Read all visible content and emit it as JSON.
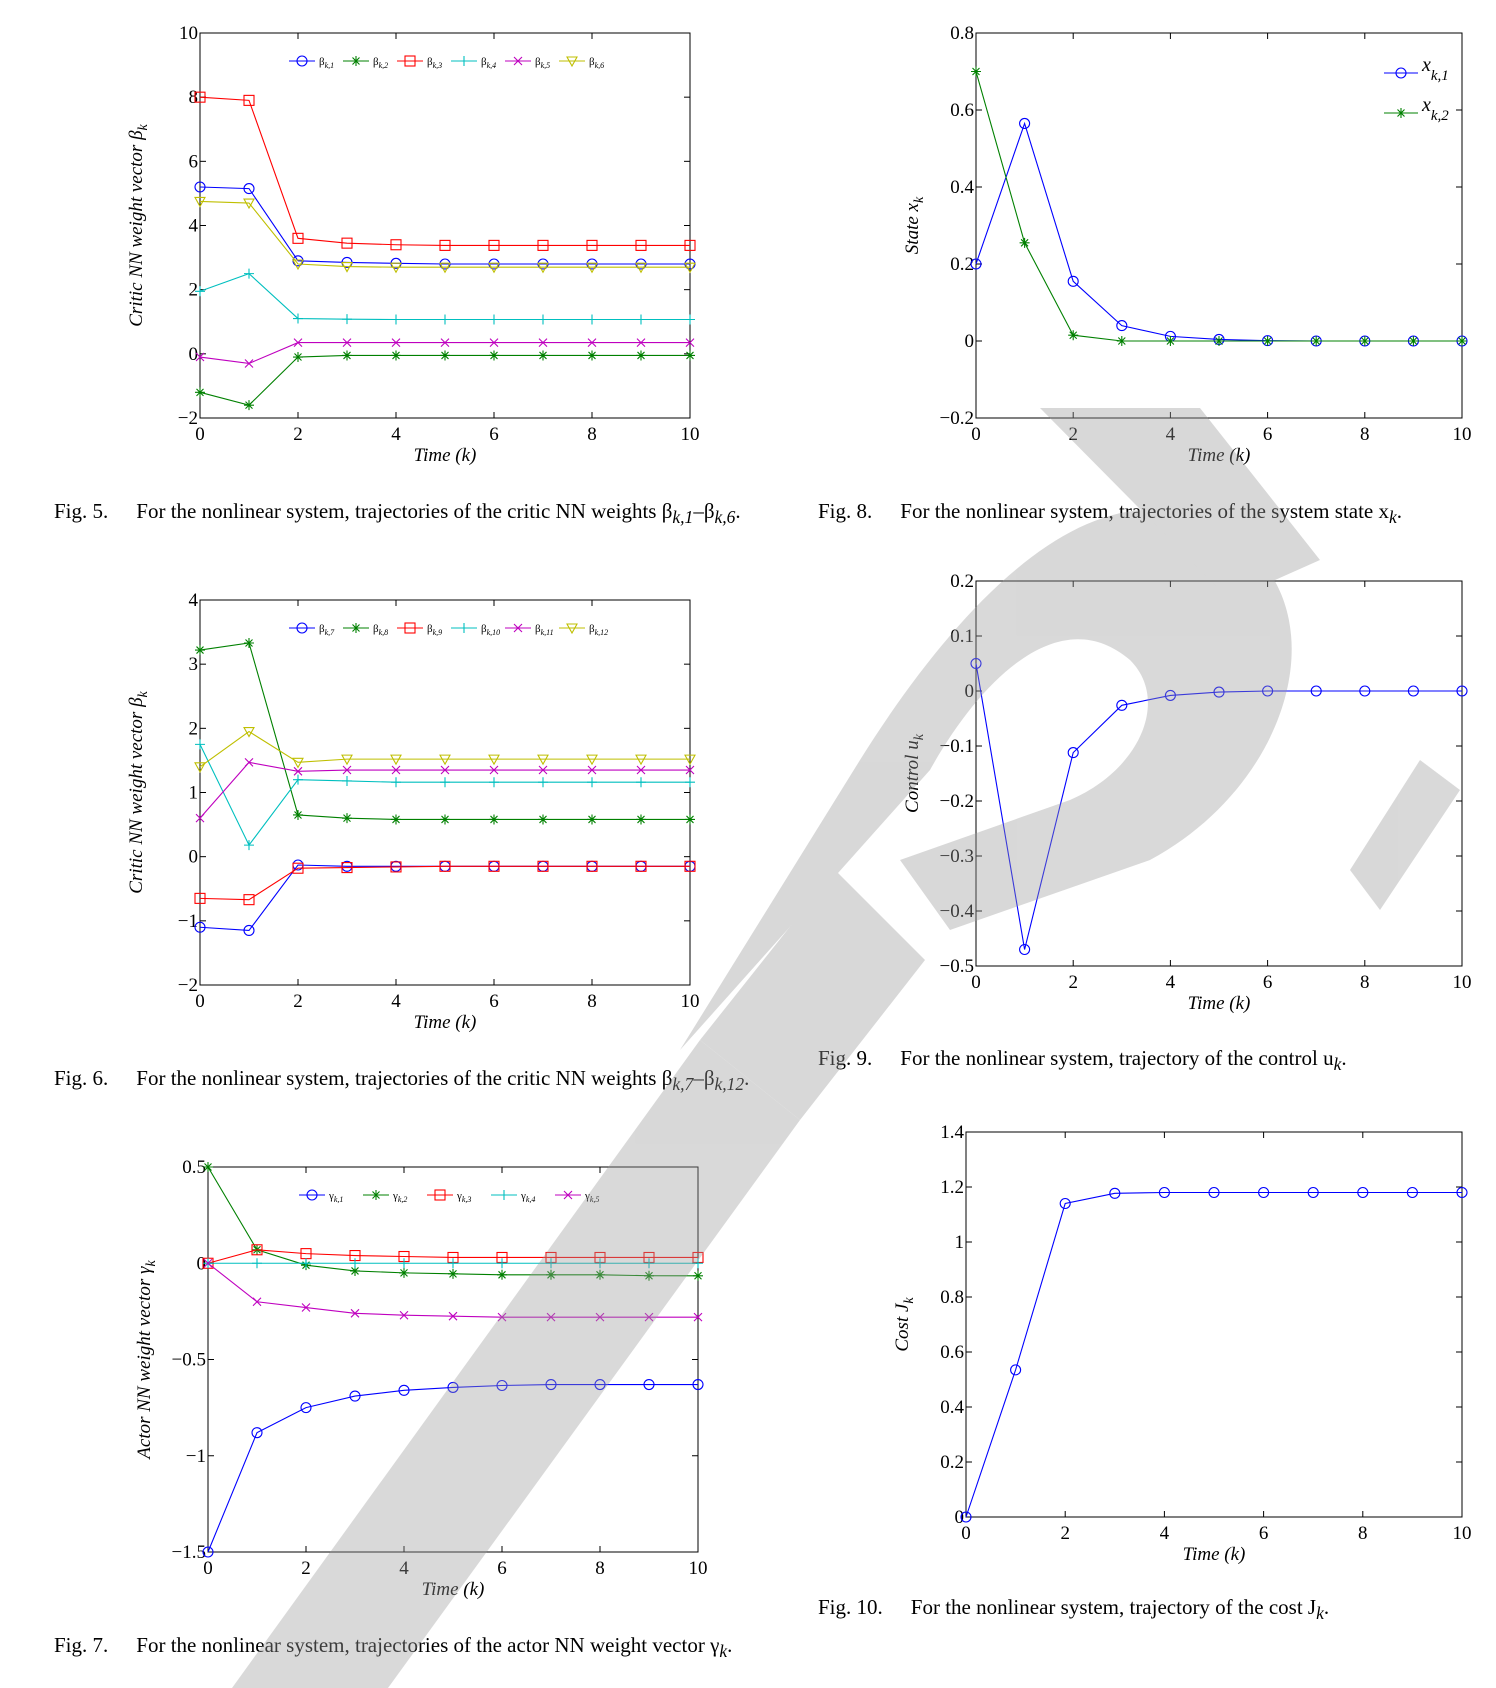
{
  "figures": [
    {
      "id": "fig5",
      "caption_label": "Fig. 5.",
      "caption_text": "For the nonlinear system, trajectories of the critic NN weights β",
      "caption_tail": "k,1",
      "caption_mid": "–β",
      "caption_tail2": "k,6",
      "caption_end": ".",
      "chart_data": {
        "type": "line",
        "ylabel": "Critic NN weight vector β",
        "ylabel_sub": "k",
        "xlabel": "Time (k)",
        "xlim": [
          0,
          10
        ],
        "ylim": [
          -2,
          10
        ],
        "xticks": [
          "0",
          "2",
          "4",
          "6",
          "8",
          "10"
        ],
        "yticks": [
          "−2",
          "0",
          "2",
          "4",
          "6",
          "8",
          "10"
        ],
        "legend_position": "top",
        "x": [
          0,
          1,
          2,
          3,
          4,
          5,
          6,
          7,
          8,
          9,
          10
        ],
        "series": [
          {
            "name": "β",
            "sub": "k,1",
            "color": "#0000ff",
            "marker": "circle",
            "values": [
              5.2,
              5.15,
              2.9,
              2.85,
              2.82,
              2.8,
              2.8,
              2.8,
              2.8,
              2.8,
              2.8
            ]
          },
          {
            "name": "β",
            "sub": "k,2",
            "color": "#008000",
            "marker": "star",
            "values": [
              -1.2,
              -1.6,
              -0.1,
              -0.05,
              -0.05,
              -0.05,
              -0.05,
              -0.05,
              -0.05,
              -0.05,
              -0.05
            ]
          },
          {
            "name": "β",
            "sub": "k,3",
            "color": "#ff0000",
            "marker": "square",
            "values": [
              8.0,
              7.9,
              3.6,
              3.45,
              3.4,
              3.38,
              3.38,
              3.38,
              3.38,
              3.38,
              3.38
            ]
          },
          {
            "name": "β",
            "sub": "k,4",
            "color": "#00bfbf",
            "marker": "plus",
            "values": [
              1.95,
              2.5,
              1.1,
              1.08,
              1.07,
              1.07,
              1.07,
              1.07,
              1.07,
              1.07,
              1.07
            ]
          },
          {
            "name": "β",
            "sub": "k,5",
            "color": "#bf00bf",
            "marker": "x",
            "values": [
              -0.1,
              -0.3,
              0.35,
              0.35,
              0.35,
              0.35,
              0.35,
              0.35,
              0.35,
              0.35,
              0.35
            ]
          },
          {
            "name": "β",
            "sub": "k,6",
            "color": "#bfbf00",
            "marker": "triangle",
            "values": [
              4.75,
              4.7,
              2.8,
              2.72,
              2.7,
              2.7,
              2.7,
              2.7,
              2.7,
              2.7,
              2.7
            ]
          }
        ]
      }
    },
    {
      "id": "fig6",
      "caption_label": "Fig. 6.",
      "caption_text": "For the nonlinear system, trajectories of the critic NN weights β",
      "caption_tail": "k,7",
      "caption_mid": "–β",
      "caption_tail2": "k,12",
      "caption_end": ".",
      "chart_data": {
        "type": "line",
        "ylabel": "Critic NN weight vector β",
        "ylabel_sub": "k",
        "xlabel": "Time (k)",
        "xlim": [
          0,
          10
        ],
        "ylim": [
          -2,
          4
        ],
        "xticks": [
          "0",
          "2",
          "4",
          "6",
          "8",
          "10"
        ],
        "yticks": [
          "−2",
          "−1",
          "0",
          "1",
          "2",
          "3",
          "4"
        ],
        "legend_position": "top",
        "x": [
          0,
          1,
          2,
          3,
          4,
          5,
          6,
          7,
          8,
          9,
          10
        ],
        "series": [
          {
            "name": "β",
            "sub": "k,7",
            "color": "#0000ff",
            "marker": "circle",
            "values": [
              -1.1,
              -1.15,
              -0.13,
              -0.15,
              -0.15,
              -0.15,
              -0.15,
              -0.15,
              -0.15,
              -0.15,
              -0.15
            ]
          },
          {
            "name": "β",
            "sub": "k,8",
            "color": "#008000",
            "marker": "star",
            "values": [
              3.22,
              3.33,
              0.65,
              0.6,
              0.58,
              0.58,
              0.58,
              0.58,
              0.58,
              0.58,
              0.58
            ]
          },
          {
            "name": "β",
            "sub": "k,9",
            "color": "#ff0000",
            "marker": "square",
            "values": [
              -0.65,
              -0.67,
              -0.18,
              -0.17,
              -0.16,
              -0.15,
              -0.15,
              -0.15,
              -0.15,
              -0.15,
              -0.15
            ]
          },
          {
            "name": "β",
            "sub": "k,10",
            "color": "#00bfbf",
            "marker": "plus",
            "values": [
              1.75,
              0.18,
              1.2,
              1.18,
              1.16,
              1.16,
              1.16,
              1.16,
              1.16,
              1.16,
              1.16
            ]
          },
          {
            "name": "β",
            "sub": "k,11",
            "color": "#bf00bf",
            "marker": "x",
            "values": [
              0.6,
              1.47,
              1.33,
              1.35,
              1.35,
              1.35,
              1.35,
              1.35,
              1.35,
              1.35,
              1.35
            ]
          },
          {
            "name": "β",
            "sub": "k,12",
            "color": "#bfbf00",
            "marker": "triangle",
            "values": [
              1.4,
              1.95,
              1.47,
              1.52,
              1.52,
              1.52,
              1.52,
              1.52,
              1.52,
              1.52,
              1.52
            ]
          }
        ]
      }
    },
    {
      "id": "fig7",
      "caption_label": "Fig. 7.",
      "caption_text": "For the nonlinear system, trajectories of the actor NN weight vector γ",
      "caption_tail": "k",
      "caption_mid": "",
      "caption_tail2": "",
      "caption_end": ".",
      "chart_data": {
        "type": "line",
        "ylabel": "Actor NN weight vector γ",
        "ylabel_sub": "k",
        "xlabel": "Time (k)",
        "xlim": [
          0,
          10
        ],
        "ylim": [
          -1.5,
          0.5
        ],
        "xticks": [
          "0",
          "2",
          "4",
          "6",
          "8",
          "10"
        ],
        "yticks": [
          "−1.5",
          "−1",
          "−0.5",
          "0",
          "0.5"
        ],
        "legend_position": "top",
        "x": [
          0,
          1,
          2,
          3,
          4,
          5,
          6,
          7,
          8,
          9,
          10
        ],
        "series": [
          {
            "name": "γ",
            "sub": "k,1",
            "color": "#0000ff",
            "marker": "circle",
            "values": [
              -1.5,
              -0.88,
              -0.75,
              -0.69,
              -0.66,
              -0.645,
              -0.635,
              -0.63,
              -0.63,
              -0.63,
              -0.63
            ]
          },
          {
            "name": "γ",
            "sub": "k,2",
            "color": "#008000",
            "marker": "star",
            "values": [
              0.5,
              0.07,
              -0.01,
              -0.04,
              -0.05,
              -0.055,
              -0.06,
              -0.06,
              -0.06,
              -0.065,
              -0.065
            ]
          },
          {
            "name": "γ",
            "sub": "k,3",
            "color": "#ff0000",
            "marker": "square",
            "values": [
              0,
              0.07,
              0.05,
              0.04,
              0.035,
              0.03,
              0.03,
              0.03,
              0.03,
              0.03,
              0.03
            ]
          },
          {
            "name": "γ",
            "sub": "k,4",
            "color": "#00bfbf",
            "marker": "plus",
            "values": [
              0,
              0,
              0,
              0,
              0,
              0,
              0,
              0,
              0,
              0,
              0
            ]
          },
          {
            "name": "γ",
            "sub": "k,5",
            "color": "#bf00bf",
            "marker": "x",
            "values": [
              0,
              -0.2,
              -0.23,
              -0.26,
              -0.27,
              -0.275,
              -0.28,
              -0.28,
              -0.28,
              -0.28,
              -0.28
            ]
          }
        ]
      }
    },
    {
      "id": "fig8",
      "caption_label": "Fig. 8.",
      "caption_text": "For the nonlinear system, trajectories of the system state x",
      "caption_tail": "k",
      "caption_mid": "",
      "caption_tail2": "",
      "caption_end": ".",
      "chart_data": {
        "type": "line",
        "ylabel": "State x",
        "ylabel_sub": "k",
        "xlabel": "Time (k)",
        "xlim": [
          0,
          10
        ],
        "ylim": [
          -0.2,
          0.8
        ],
        "xticks": [
          "0",
          "2",
          "4",
          "6",
          "8",
          "10"
        ],
        "yticks": [
          "−0.2",
          "0",
          "0.2",
          "0.4",
          "0.6",
          "0.8"
        ],
        "legend_position": "top-right",
        "x": [
          0,
          1,
          2,
          3,
          4,
          5,
          6,
          7,
          8,
          9,
          10
        ],
        "series": [
          {
            "name": "x",
            "sub": "k,1",
            "color": "#0000ff",
            "marker": "circle",
            "values": [
              0.2,
              0.565,
              0.155,
              0.04,
              0.012,
              0.004,
              0.001,
              0,
              0,
              0,
              0
            ]
          },
          {
            "name": "x",
            "sub": "k,2",
            "color": "#008000",
            "marker": "star",
            "values": [
              0.7,
              0.255,
              0.015,
              0,
              0,
              0,
              0,
              0,
              0,
              0,
              0
            ]
          }
        ]
      }
    },
    {
      "id": "fig9",
      "caption_label": "Fig. 9.",
      "caption_text": "For the nonlinear system, trajectory of the control u",
      "caption_tail": "k",
      "caption_mid": "",
      "caption_tail2": "",
      "caption_end": ".",
      "chart_data": {
        "type": "line",
        "ylabel": "Control u",
        "ylabel_sub": "k",
        "xlabel": "Time (k)",
        "xlim": [
          0,
          10
        ],
        "ylim": [
          -0.5,
          0.2
        ],
        "xticks": [
          "0",
          "2",
          "4",
          "6",
          "8",
          "10"
        ],
        "yticks": [
          "−0.5",
          "−0.4",
          "−0.3",
          "−0.2",
          "−0.1",
          "0",
          "0.1",
          "0.2"
        ],
        "legend_position": "none",
        "x": [
          0,
          1,
          2,
          3,
          4,
          5,
          6,
          7,
          8,
          9,
          10
        ],
        "series": [
          {
            "name": "",
            "sub": "",
            "color": "#0000ff",
            "marker": "circle",
            "values": [
              0.05,
              -0.47,
              -0.112,
              -0.026,
              -0.008,
              -0.002,
              0,
              0,
              0,
              0,
              0
            ]
          }
        ]
      }
    },
    {
      "id": "fig10",
      "caption_label": "Fig. 10.",
      "caption_text": "For the nonlinear system, trajectory of the cost J",
      "caption_tail": "k",
      "caption_mid": "",
      "caption_tail2": "",
      "caption_end": ".",
      "chart_data": {
        "type": "line",
        "ylabel": "Cost J",
        "ylabel_sub": "k",
        "xlabel": "Time (k)",
        "xlim": [
          0,
          10
        ],
        "ylim": [
          0,
          1.4
        ],
        "xticks": [
          "0",
          "2",
          "4",
          "6",
          "8",
          "10"
        ],
        "yticks": [
          "0",
          "0.2",
          "0.4",
          "0.6",
          "0.8",
          "1",
          "1.2",
          "1.4"
        ],
        "legend_position": "none",
        "x": [
          0,
          1,
          2,
          3,
          4,
          5,
          6,
          7,
          8,
          9,
          10
        ],
        "series": [
          {
            "name": "",
            "sub": "",
            "color": "#0000ff",
            "marker": "circle",
            "values": [
              0,
              0.535,
              1.14,
              1.177,
              1.18,
              1.18,
              1.18,
              1.18,
              1.18,
              1.18,
              1.18
            ]
          }
        ]
      }
    }
  ]
}
